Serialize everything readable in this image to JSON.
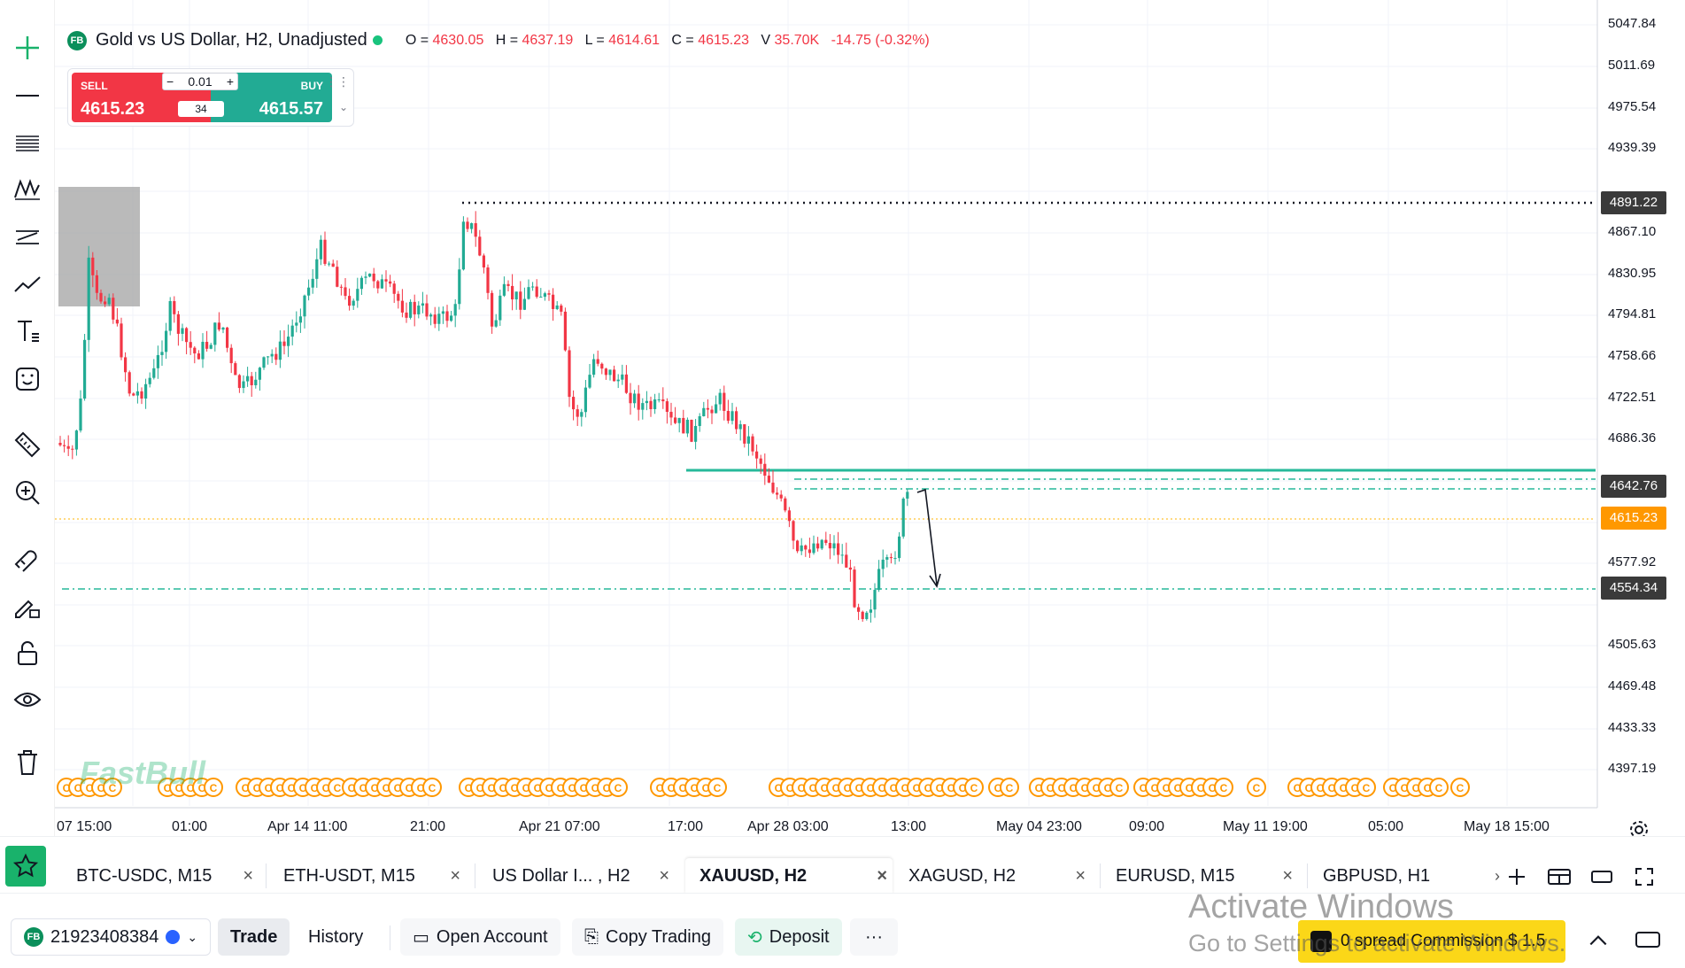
{
  "chart_header": {
    "symbol_badge": "FB",
    "title": "Gold vs US Dollar, H2, Unadjusted",
    "open_label": "O =",
    "open": "4630.05",
    "high_label": "H =",
    "high": "4637.19",
    "low_label": "L =",
    "low": "4614.61",
    "close_label": "C =",
    "close": "4615.23",
    "volume_label": "V",
    "volume": "35.70K",
    "change": "-14.75 (-0.32%)"
  },
  "trade_widget": {
    "sell_label": "SELL",
    "sell_price": "4615.23",
    "buy_label": "BUY",
    "buy_price": "4615.57",
    "lot_minus": "−",
    "lot_size": "0.01",
    "lot_plus": "+",
    "spread": "34"
  },
  "price_axis": {
    "ticks": [
      "5047.84",
      "5011.69",
      "4975.54",
      "4939.39",
      "4867.10",
      "4830.95",
      "4794.81",
      "4758.66",
      "4722.51",
      "4686.36",
      "4577.92",
      "4505.63",
      "4469.48",
      "4433.33",
      "4397.19"
    ],
    "tags": {
      "dotted_high": "4891.22",
      "resistance": "4642.76",
      "current": "4615.23",
      "support": "4554.34"
    }
  },
  "time_axis": [
    "07 15:00",
    "01:00",
    "Apr 14 11:00",
    "21:00",
    "Apr 21 07:00",
    "17:00",
    "Apr 28 03:00",
    "13:00",
    "May 04 23:00",
    "09:00",
    "May 11 19:00",
    "05:00",
    "May 18 15:00"
  ],
  "colors": {
    "bull": "#22ab94",
    "bear": "#f23645",
    "current_tag": "#ff9800",
    "level_tag": "#3a3a3a",
    "teal_line": "#26b99a"
  },
  "watermark": "FastBull",
  "tabs": [
    {
      "label": "BTC-USDC, M15"
    },
    {
      "label": "ETH-USDT, M15"
    },
    {
      "label": "US Dollar I... , H2"
    },
    {
      "label": "XAUUSD, H2"
    },
    {
      "label": "XAGUSD, H2"
    },
    {
      "label": "EURUSD, M15"
    },
    {
      "label": "GBPUSD, H1"
    }
  ],
  "bottom_bar": {
    "account_badge": "FB",
    "account_id": "21923408384",
    "trade": "Trade",
    "history": "History",
    "open_account": "Open Account",
    "copy_trading": "Copy Trading",
    "deposit": "Deposit",
    "more": "···",
    "promo": "0 spread Commission $ 1.5"
  },
  "os_overlay": {
    "line1": "Activate Windows",
    "line2": "Go to Settings to activate Windows."
  },
  "icons": [
    "crosshair-icon",
    "horizontal-line-icon",
    "fib-levels-icon",
    "pattern-icon",
    "channel-icon",
    "trend-icon",
    "text-tool-icon",
    "emoji-icon",
    "ruler-icon",
    "zoom-in-icon",
    "magnet-icon",
    "brush-lock-icon",
    "lock-icon",
    "eye-icon",
    "trash-icon",
    "star-icon",
    "plus-icon",
    "layout-icon",
    "window-icon",
    "fullscreen-icon",
    "chevron-up-icon",
    "settings-icon"
  ]
}
